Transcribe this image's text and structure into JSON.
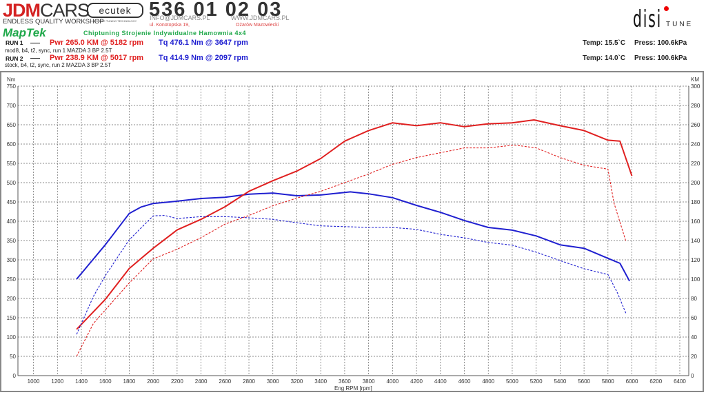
{
  "header": {
    "jdm_logo": "JDMCARS",
    "jdm_tagline": "ENDLESS QUALITY WORKSHOP",
    "ecutek_logo": "ecutek",
    "ecutek_tagline": "VEHICLE TUNING TECHNOLOGY",
    "phone": "536 01 02 03",
    "email": "INFO@JDMCARS.PL",
    "website": "WWW.JDMCARS.PL",
    "address": "ul. Konotopska 19,",
    "city": "Ożarów Mazowiecki",
    "maptek_logo": "MapTek",
    "slogan": "Chiptuning Strojenie Indywidualne Hamownia 4x4",
    "disi_logo": "disi",
    "disi_tune": "TUNE"
  },
  "runs": [
    {
      "label": "RUN 1",
      "pwr": "Pwr  265.0 KM @ 5182 rpm",
      "tq": "Tq 476.1 Nm @ 3647 rpm",
      "desc": "mod8, b4, t2, sync, run 1 MAZDA 3 BP 2.5T",
      "temp": "Temp: 15.5`C",
      "press": "Press: 100.6kPa"
    },
    {
      "label": "RUN 2",
      "pwr": "Pwr  238.9 KM @ 5017 rpm",
      "tq": "Tq 414.9 Nm @ 2097 rpm",
      "desc": "stock, b4, t2, sync, run 2 MAZDA 3 BP 2.5T",
      "temp": "Temp: 14.0`C",
      "press": "Press: 100.6kPa"
    }
  ],
  "colors": {
    "power": "#e02020",
    "torque": "#2020d0"
  },
  "chart_data": {
    "type": "line",
    "xlabel": "Eng RPM [rpm]",
    "ylabel_left": "Nm",
    "ylabel_right": "KM",
    "xlim": [
      870,
      6475
    ],
    "ylim_left": [
      0,
      750
    ],
    "ylim_right": [
      0,
      300
    ],
    "xticks": [
      1000,
      1200,
      1400,
      1600,
      1800,
      2000,
      2200,
      2400,
      2600,
      2800,
      3000,
      3200,
      3400,
      3600,
      3800,
      4000,
      4200,
      4400,
      4600,
      4800,
      5000,
      5200,
      5400,
      5600,
      5800,
      6000,
      6200,
      6400
    ],
    "yticks_left": [
      0,
      50,
      100,
      150,
      200,
      250,
      300,
      350,
      400,
      450,
      500,
      550,
      600,
      650,
      700,
      750
    ],
    "yticks_right": [
      0,
      20,
      40,
      60,
      80,
      100,
      120,
      140,
      160,
      180,
      200,
      220,
      240,
      260,
      280,
      300
    ],
    "grid": true,
    "series": [
      {
        "run": "RUN 1",
        "quantity": "torque",
        "axis": "left",
        "style": "solid",
        "color": "#2020d0",
        "x": [
          1360,
          1600,
          1800,
          1900,
          2000,
          2200,
          2400,
          2600,
          2800,
          3000,
          3200,
          3400,
          3647,
          3800,
          4000,
          4200,
          4400,
          4600,
          4800,
          5000,
          5200,
          5400,
          5600,
          5800,
          5900,
          5980
        ],
        "y": [
          250,
          339,
          420,
          437,
          446,
          452,
          459,
          462,
          470,
          473,
          466,
          468,
          476,
          471,
          461,
          441,
          423,
          402,
          384,
          377,
          362,
          339,
          330,
          304,
          291,
          245
        ]
      },
      {
        "run": "RUN 1",
        "quantity": "power",
        "axis": "right",
        "style": "solid",
        "color": "#e02020",
        "x": [
          1360,
          1600,
          1800,
          2000,
          2200,
          2400,
          2600,
          2800,
          3000,
          3200,
          3400,
          3600,
          3800,
          4000,
          4200,
          4400,
          4600,
          4800,
          5000,
          5182,
          5400,
          5600,
          5800,
          5900,
          6000
        ],
        "y": [
          48,
          79,
          111,
          132,
          151,
          162,
          175,
          191,
          202,
          212,
          225,
          243,
          254,
          262,
          259,
          262,
          258,
          261,
          262,
          265,
          259,
          254,
          244,
          243,
          207
        ]
      },
      {
        "run": "RUN 2",
        "quantity": "torque",
        "axis": "left",
        "style": "dashed",
        "color": "#2020d0",
        "x": [
          1360,
          1500,
          1600,
          1800,
          2000,
          2097,
          2200,
          2400,
          2600,
          2800,
          3000,
          3200,
          3400,
          3600,
          3800,
          4000,
          4200,
          4400,
          4600,
          4800,
          5000,
          5200,
          5400,
          5600,
          5800,
          5880,
          5950
        ],
        "y": [
          107,
          205,
          259,
          352,
          414,
          415,
          407,
          412,
          412,
          409,
          405,
          396,
          388,
          386,
          384,
          384,
          379,
          366,
          357,
          345,
          338,
          320,
          298,
          277,
          262,
          214,
          161
        ]
      },
      {
        "run": "RUN 2",
        "quantity": "power",
        "axis": "right",
        "style": "dashed",
        "color": "#e02020",
        "x": [
          1360,
          1500,
          1600,
          1800,
          2000,
          2200,
          2400,
          2600,
          2800,
          3000,
          3200,
          3400,
          3600,
          3800,
          4000,
          4200,
          4400,
          4600,
          4800,
          5017,
          5200,
          5400,
          5600,
          5800,
          5850,
          5950
        ],
        "y": [
          20,
          54,
          68,
          96,
          121,
          131,
          143,
          157,
          166,
          176,
          184,
          191,
          200,
          209,
          219,
          226,
          231,
          236,
          236,
          239,
          236,
          226,
          218,
          214,
          179,
          139
        ]
      }
    ]
  }
}
